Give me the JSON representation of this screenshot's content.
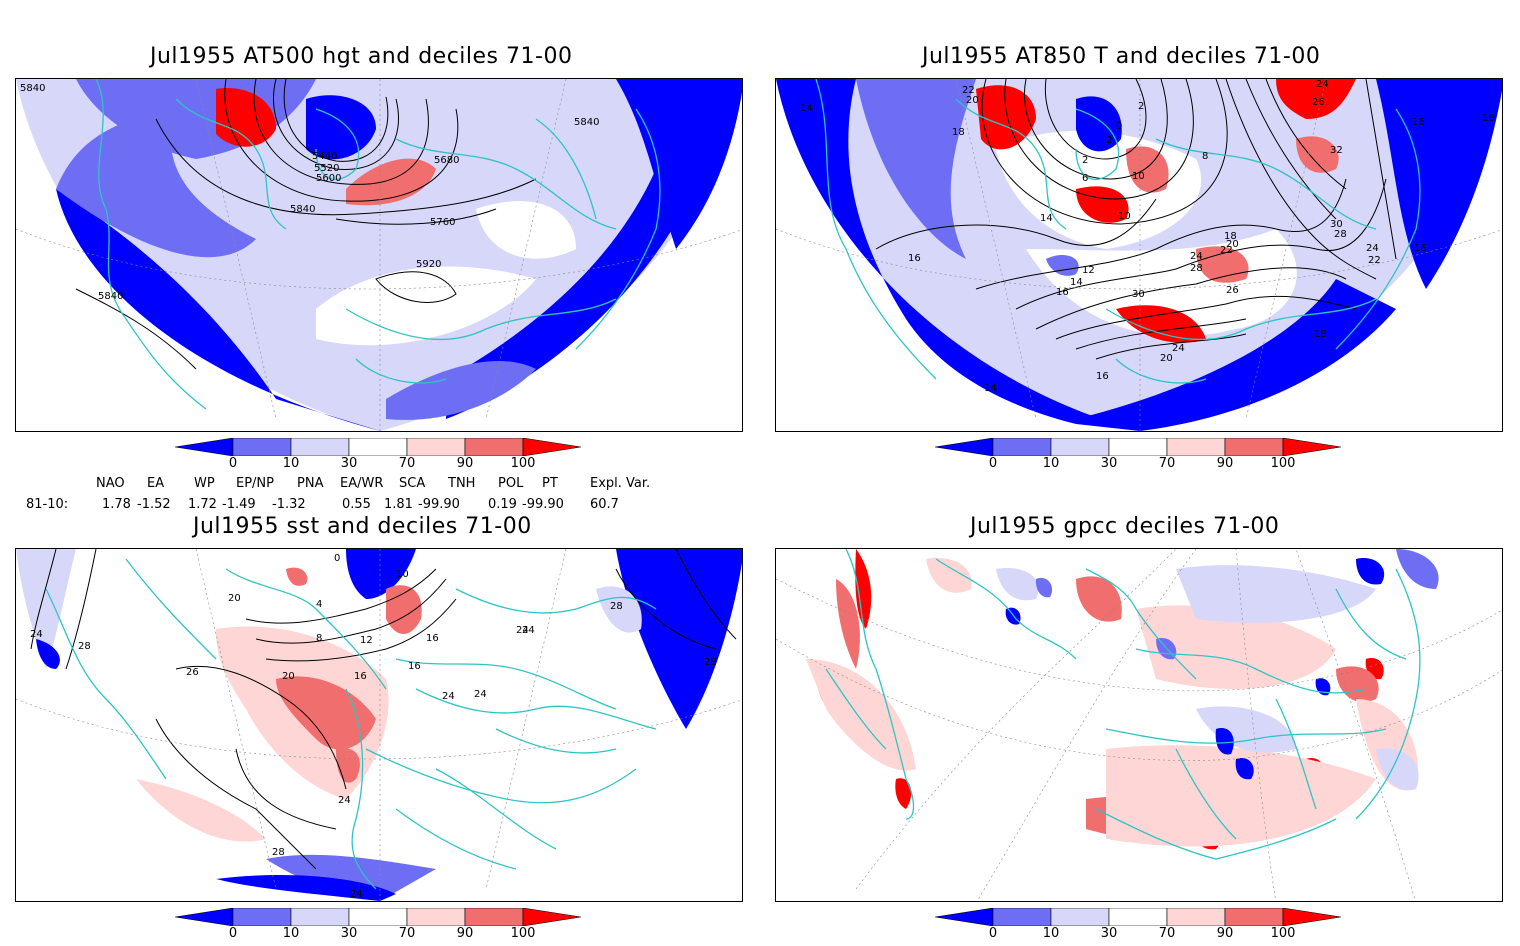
{
  "panels": [
    {
      "title": "Jul1955 AT500 hgt and deciles 71-00",
      "contour_labels": [
        "5840",
        "5440",
        "5520",
        "5600",
        "5680",
        "5840",
        "5760",
        "5920",
        "5840",
        "5840"
      ]
    },
    {
      "title": "Jul1955 AT850 T and deciles 71-00",
      "contour_labels": [
        "14",
        "22",
        "20",
        "18",
        "2",
        "0",
        "2",
        "2",
        "6",
        "8",
        "10",
        "10",
        "14",
        "16",
        "12",
        "14",
        "16",
        "18",
        "20",
        "22",
        "24",
        "28",
        "30",
        "26",
        "24",
        "20",
        "16",
        "14",
        "18",
        "16",
        "24",
        "26",
        "32",
        "30",
        "28",
        "24",
        "22",
        "16",
        "16"
      ]
    },
    {
      "title": "Jul1955 sst and deciles 71-00",
      "contour_labels": [
        "24",
        "28",
        "20",
        "0",
        "10",
        "4",
        "8",
        "12",
        "16",
        "16",
        "20",
        "26",
        "24",
        "24",
        "24",
        "16",
        "24",
        "28",
        "24",
        "28",
        "28",
        "24"
      ]
    },
    {
      "title": "Jul1955 gpcc deciles 71-00",
      "contour_labels": []
    }
  ],
  "colorbar": {
    "ticks": [
      "0",
      "10",
      "30",
      "70",
      "90",
      "100"
    ],
    "colors": [
      "#0000ff",
      "#6e6ef5",
      "#d7d7fa",
      "#ffffff",
      "#ffd6d6",
      "#f06e6e",
      "#ff0000"
    ]
  },
  "indices": {
    "headers": [
      "NAO",
      "EA",
      "WP",
      "EP/NP",
      "PNA",
      "EA/WR",
      "SCA",
      "TNH",
      "POL",
      "PT",
      "Expl. Var."
    ],
    "row_label": "81-10:",
    "values": [
      "1.78",
      "-1.52",
      "1.72",
      "-1.49",
      "-1.32",
      "0.55",
      "1.81",
      "-99.90",
      "0.19",
      "-99.90",
      "60.7"
    ]
  },
  "colors": {
    "coast": "#2ec4c4",
    "contour": "#000000",
    "border": "#000000"
  }
}
